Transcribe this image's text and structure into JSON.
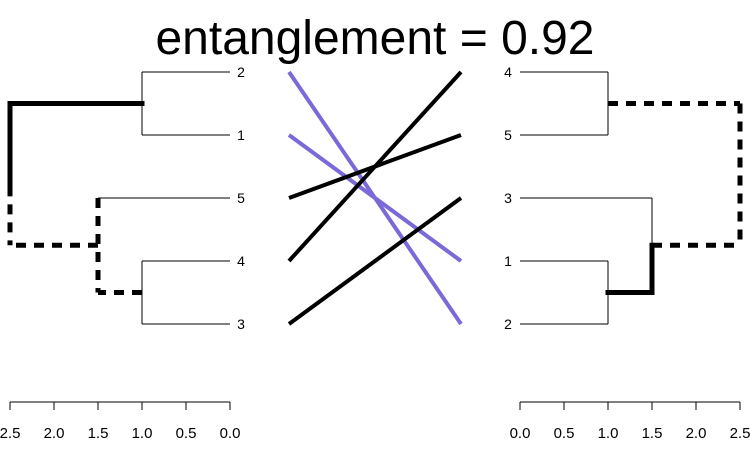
{
  "chart_data": {
    "type": "tanglegram",
    "title": "entanglement = 0.92",
    "left_dendrogram": {
      "leaf_order": [
        "2",
        "1",
        "5",
        "4",
        "3"
      ],
      "axis_ticks": [
        "2.5",
        "2.0",
        "1.5",
        "1.0",
        "0.5",
        "0.0"
      ],
      "xlim": [
        2.5,
        0.0
      ],
      "merges": [
        {
          "children": [
            "2",
            "1"
          ],
          "height": 1.0
        },
        {
          "children": [
            "4",
            "3"
          ],
          "height": 1.0
        },
        {
          "children": [
            "5",
            "4+3"
          ],
          "height": 1.5
        },
        {
          "children": [
            "2+1",
            "5+4+3"
          ],
          "height": 2.5
        }
      ]
    },
    "right_dendrogram": {
      "leaf_order": [
        "4",
        "5",
        "3",
        "1",
        "2"
      ],
      "axis_ticks": [
        "0.0",
        "0.5",
        "1.0",
        "1.5",
        "2.0",
        "2.5"
      ],
      "xlim": [
        0.0,
        2.5
      ],
      "merges": [
        {
          "children": [
            "4",
            "5"
          ],
          "height": 1.0
        },
        {
          "children": [
            "1",
            "2"
          ],
          "height": 1.0
        },
        {
          "children": [
            "3",
            "1+2"
          ],
          "height": 1.5
        },
        {
          "children": [
            "4+5",
            "3+1+2"
          ],
          "height": 2.5
        }
      ]
    },
    "connections": [
      {
        "leaf": "2",
        "color": "#7b68d9"
      },
      {
        "leaf": "1",
        "color": "#7b68d9"
      },
      {
        "leaf": "5",
        "color": "#000000"
      },
      {
        "leaf": "4",
        "color": "#000000"
      },
      {
        "leaf": "3",
        "color": "#000000"
      }
    ],
    "highlighted_branch_styles": {
      "solid_color": "#000000",
      "dashed_color": "#000000"
    }
  }
}
